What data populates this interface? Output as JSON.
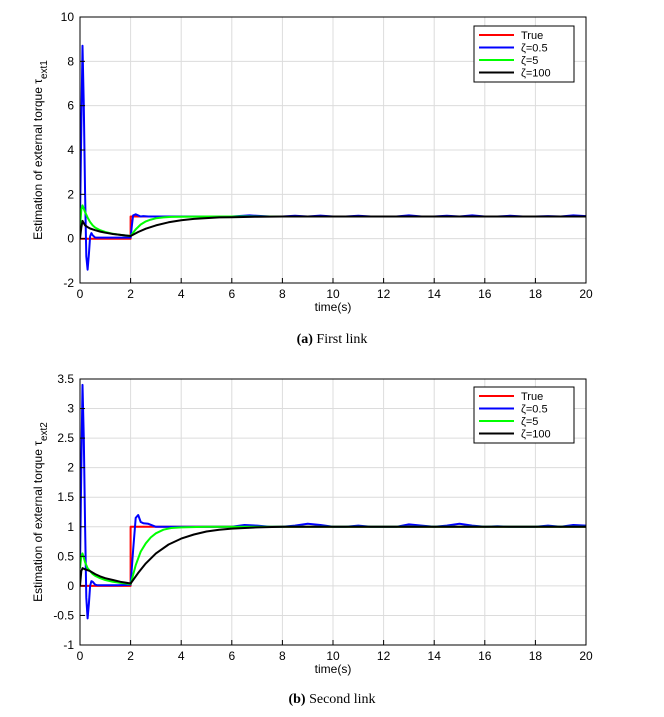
{
  "chart_data": [
    {
      "type": "line",
      "caption_label": "(a)",
      "caption_text": "First link",
      "xlabel": "time(s)",
      "ylabel": "Estimation of external torque τ",
      "ylabel_sub": "ext1",
      "xlim": [
        0,
        20
      ],
      "ylim": [
        -2,
        10
      ],
      "xticks": [
        0,
        2,
        4,
        6,
        8,
        10,
        12,
        14,
        16,
        18,
        20
      ],
      "yticks": [
        -2,
        0,
        2,
        4,
        6,
        8,
        10
      ],
      "grid": true,
      "legend_position": "top-right",
      "series": [
        {
          "name": "True",
          "color": "#ff0000",
          "x": [
            0,
            2,
            2,
            20
          ],
          "y": [
            0,
            0,
            1,
            1
          ]
        },
        {
          "name": "ζ=0.5",
          "color": "#0000ff",
          "x": [
            0,
            0.05,
            0.1,
            0.15,
            0.2,
            0.25,
            0.3,
            0.35,
            0.4,
            0.45,
            0.5,
            0.6,
            0.7,
            0.8,
            1.0,
            1.5,
            2.0,
            2.05,
            2.1,
            2.2,
            2.3,
            2.4,
            2.5,
            2.7,
            3.0,
            4.0,
            5.0,
            6.0,
            6.7,
            7.5,
            8.0,
            8.5,
            9.0,
            9.5,
            10.0,
            10.5,
            11.0,
            11.5,
            12.0,
            12.5,
            13.0,
            13.5,
            14.0,
            14.5,
            15.0,
            15.5,
            16.0,
            16.5,
            17.0,
            17.5,
            18.0,
            18.5,
            19.0,
            19.5,
            20.0
          ],
          "y": [
            0.8,
            5.0,
            8.7,
            6.0,
            2.0,
            -0.8,
            -1.4,
            -0.7,
            0.1,
            0.25,
            0.15,
            0.05,
            0.05,
            0.05,
            0.05,
            0.05,
            0.05,
            0.6,
            1.05,
            1.1,
            1.05,
            1.0,
            1.02,
            1.0,
            1.0,
            1.0,
            1.0,
            1.0,
            1.05,
            1.0,
            1.0,
            1.03,
            1.0,
            1.04,
            1.0,
            1.0,
            1.03,
            1.0,
            1.0,
            1.0,
            1.05,
            1.0,
            1.0,
            1.03,
            1.0,
            1.05,
            1.0,
            1.0,
            1.03,
            1.0,
            1.0,
            1.02,
            1.0,
            1.05,
            1.02
          ]
        },
        {
          "name": "ζ=5",
          "color": "#00ff00",
          "x": [
            0,
            0.05,
            0.1,
            0.2,
            0.3,
            0.4,
            0.5,
            0.6,
            0.8,
            1.0,
            1.3,
            1.6,
            2.0,
            2.2,
            2.4,
            2.6,
            2.8,
            3.0,
            3.3,
            3.6,
            4.0,
            5.0,
            6.0,
            8.0,
            10.0,
            12.0,
            14.0,
            16.0,
            18.0,
            20.0
          ],
          "y": [
            0.5,
            1.3,
            1.5,
            1.2,
            0.95,
            0.75,
            0.6,
            0.5,
            0.38,
            0.3,
            0.22,
            0.17,
            0.12,
            0.42,
            0.64,
            0.78,
            0.86,
            0.92,
            0.96,
            0.98,
            0.99,
            1.0,
            1.0,
            1.0,
            1.0,
            1.0,
            1.0,
            1.0,
            1.0,
            1.0
          ]
        },
        {
          "name": "ζ=100",
          "color": "#000000",
          "x": [
            0,
            0.05,
            0.1,
            0.15,
            0.2,
            0.3,
            0.4,
            0.6,
            0.8,
            1.0,
            1.3,
            1.6,
            2.0,
            2.3,
            2.6,
            3.0,
            3.5,
            4.0,
            4.5,
            5.0,
            5.5,
            6.0,
            7.0,
            8.0,
            10.0,
            12.0,
            14.0,
            16.0,
            18.0,
            20.0
          ],
          "y": [
            0.0,
            0.5,
            0.8,
            0.7,
            0.6,
            0.52,
            0.46,
            0.38,
            0.32,
            0.27,
            0.21,
            0.17,
            0.12,
            0.3,
            0.45,
            0.6,
            0.74,
            0.83,
            0.89,
            0.93,
            0.96,
            0.97,
            0.99,
            1.0,
            1.0,
            1.0,
            1.0,
            1.0,
            1.0,
            1.0
          ]
        }
      ]
    },
    {
      "type": "line",
      "caption_label": "(b)",
      "caption_text": "Second link",
      "xlabel": "time(s)",
      "ylabel": "Estimation of external torque τ",
      "ylabel_sub": "ext2",
      "xlim": [
        0,
        20
      ],
      "ylim": [
        -1,
        3.5
      ],
      "xticks": [
        0,
        2,
        4,
        6,
        8,
        10,
        12,
        14,
        16,
        18,
        20
      ],
      "yticks": [
        -1,
        -0.5,
        0,
        0.5,
        1,
        1.5,
        2,
        2.5,
        3,
        3.5
      ],
      "grid": true,
      "legend_position": "top-right",
      "series": [
        {
          "name": "True",
          "color": "#ff0000",
          "x": [
            0,
            2,
            2,
            20
          ],
          "y": [
            0,
            0,
            1,
            1
          ]
        },
        {
          "name": "ζ=0.5",
          "color": "#0000ff",
          "x": [
            0,
            0.05,
            0.1,
            0.15,
            0.2,
            0.25,
            0.3,
            0.35,
            0.4,
            0.45,
            0.5,
            0.6,
            0.7,
            0.8,
            1.0,
            1.5,
            2.0,
            2.1,
            2.2,
            2.3,
            2.4,
            2.5,
            2.7,
            3.0,
            3.5,
            4.0,
            5.0,
            6.0,
            6.5,
            7.0,
            7.5,
            8.0,
            8.5,
            9.0,
            9.5,
            10.0,
            10.5,
            11.0,
            11.5,
            12.0,
            12.5,
            13.0,
            13.5,
            14.0,
            14.5,
            15.0,
            15.5,
            16.0,
            16.5,
            17.0,
            17.5,
            18.0,
            18.5,
            19.0,
            19.5,
            20.0
          ],
          "y": [
            0.3,
            2.0,
            3.4,
            2.5,
            1.0,
            -0.2,
            -0.55,
            -0.3,
            0.0,
            0.08,
            0.07,
            0.02,
            0.01,
            0.01,
            0.01,
            0.01,
            0.02,
            0.6,
            1.15,
            1.2,
            1.08,
            1.06,
            1.05,
            1.0,
            1.0,
            1.0,
            1.0,
            1.0,
            1.03,
            1.02,
            1.0,
            1.0,
            1.02,
            1.05,
            1.03,
            1.0,
            1.0,
            1.02,
            1.0,
            1.0,
            1.0,
            1.04,
            1.02,
            1.0,
            1.02,
            1.05,
            1.02,
            1.0,
            1.01,
            1.0,
            1.0,
            1.0,
            1.02,
            1.0,
            1.03,
            1.02
          ]
        },
        {
          "name": "ζ=5",
          "color": "#00ff00",
          "x": [
            0,
            0.05,
            0.1,
            0.2,
            0.3,
            0.4,
            0.5,
            0.6,
            0.8,
            1.0,
            1.3,
            1.6,
            2.0,
            2.2,
            2.4,
            2.6,
            2.8,
            3.0,
            3.3,
            3.6,
            4.0,
            5.0,
            6.0,
            8.0,
            10.0,
            12.0,
            14.0,
            16.0,
            18.0,
            20.0
          ],
          "y": [
            0.3,
            0.5,
            0.55,
            0.4,
            0.3,
            0.25,
            0.2,
            0.17,
            0.13,
            0.1,
            0.07,
            0.05,
            0.03,
            0.35,
            0.58,
            0.72,
            0.82,
            0.89,
            0.95,
            0.98,
            0.99,
            1.0,
            1.0,
            1.0,
            1.0,
            1.0,
            1.0,
            1.0,
            1.0,
            1.0
          ]
        },
        {
          "name": "ζ=100",
          "color": "#000000",
          "x": [
            0,
            0.05,
            0.1,
            0.2,
            0.4,
            0.6,
            0.8,
            1.0,
            1.3,
            1.6,
            2.0,
            2.3,
            2.6,
            3.0,
            3.5,
            4.0,
            4.5,
            5.0,
            5.5,
            6.0,
            7.0,
            8.0,
            10.0,
            12.0,
            14.0,
            16.0,
            18.0,
            20.0
          ],
          "y": [
            0.0,
            0.25,
            0.3,
            0.28,
            0.25,
            0.2,
            0.16,
            0.13,
            0.1,
            0.07,
            0.04,
            0.22,
            0.38,
            0.55,
            0.7,
            0.8,
            0.87,
            0.92,
            0.95,
            0.97,
            0.99,
            1.0,
            1.0,
            1.0,
            1.0,
            1.0,
            1.0,
            1.0
          ]
        }
      ]
    }
  ]
}
